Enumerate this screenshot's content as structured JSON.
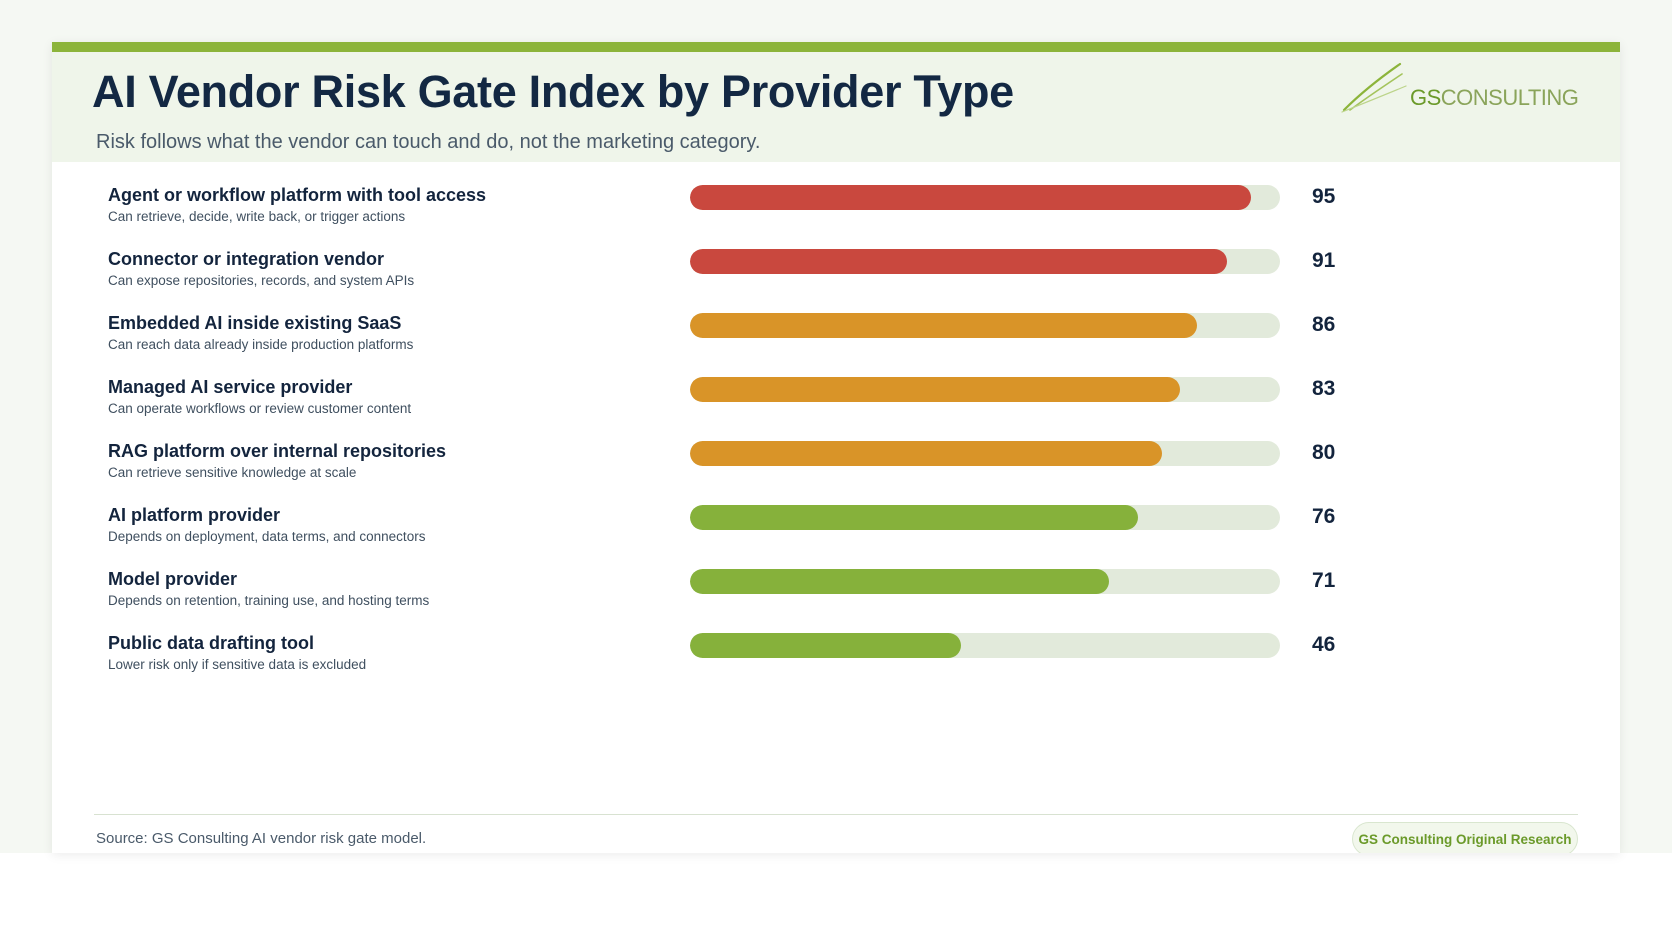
{
  "header": {
    "title": "AI Vendor Risk Gate Index by Provider Type",
    "subtitle": "Risk follows what the vendor can touch and do, not the marketing category."
  },
  "logo": {
    "brand_bold": "GS",
    "brand_rest": "CONSULTING",
    "icon": "swoosh-icon"
  },
  "colors": {
    "high": "#c9483e",
    "medium": "#d99428",
    "low": "#86b13b",
    "track": "#e2eadb",
    "accent": "#8cb43a"
  },
  "chart_data": {
    "type": "bar",
    "orientation": "horizontal",
    "xlim": [
      0,
      100
    ],
    "categories": [
      "Agent or workflow platform with tool access",
      "Connector or integration vendor",
      "Embedded AI inside existing SaaS",
      "Managed AI service provider",
      "RAG platform over internal repositories",
      "AI platform provider",
      "Model provider",
      "Public data drafting tool"
    ],
    "descriptions": [
      "Can retrieve, decide, write back, or trigger actions",
      "Can expose repositories, records, and system APIs",
      "Can reach data already inside production platforms",
      "Can operate workflows or review customer content",
      "Can retrieve sensitive knowledge at scale",
      "Depends on deployment, data terms, and connectors",
      "Depends on retention, training use, and hosting terms",
      "Lower risk only if sensitive data is excluded"
    ],
    "values": [
      95,
      91,
      86,
      83,
      80,
      76,
      71,
      46
    ],
    "value_labels": [
      "95",
      "91",
      "86",
      "83",
      "80",
      "76",
      "71",
      "46"
    ],
    "bar_colors": [
      "#c9483e",
      "#c9483e",
      "#d99428",
      "#d99428",
      "#d99428",
      "#86b13b",
      "#86b13b",
      "#86b13b"
    ]
  },
  "footer": {
    "source": "Source: GS Consulting AI vendor risk gate model.",
    "badge": "GS Consulting Original Research"
  }
}
